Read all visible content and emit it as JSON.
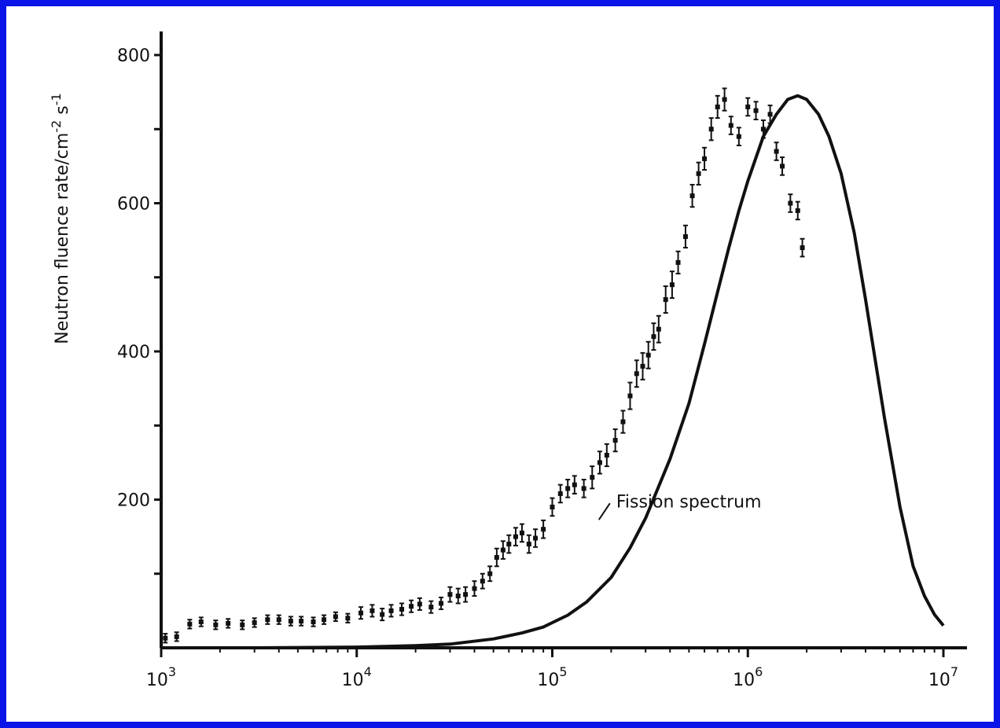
{
  "chart_data": {
    "type": "scatter",
    "title": "",
    "xlabel": "",
    "ylabel": "Neutron fluence rate/cm",
    "ylabel_sup1": "-2",
    "ylabel_mid": " s",
    "ylabel_sup2": "-1",
    "x_scale": "log",
    "xlim": [
      1000,
      10000000
    ],
    "ylim": [
      0,
      800
    ],
    "grid": false,
    "legend": "none",
    "x_ticks": [
      {
        "value": 1000,
        "base": "10",
        "exp": "3"
      },
      {
        "value": 10000,
        "base": "10",
        "exp": "4"
      },
      {
        "value": 100000,
        "base": "10",
        "exp": "5"
      },
      {
        "value": 1000000,
        "base": "10",
        "exp": "6"
      },
      {
        "value": 10000000,
        "base": "10",
        "exp": "7"
      }
    ],
    "y_ticks": [
      {
        "value": 100,
        "label": ""
      },
      {
        "value": 200,
        "label": "200"
      },
      {
        "value": 300,
        "label": ""
      },
      {
        "value": 400,
        "label": "400"
      },
      {
        "value": 500,
        "label": ""
      },
      {
        "value": 600,
        "label": "600"
      },
      {
        "value": 700,
        "label": ""
      },
      {
        "value": 800,
        "label": "800"
      }
    ],
    "annotation": "Fission spectrum",
    "series": [
      {
        "style": "errorbar-points",
        "x": [
          1050,
          1200,
          1400,
          1600,
          1900,
          2200,
          2600,
          3000,
          3500,
          4000,
          4600,
          5200,
          6000,
          6800,
          7800,
          9000,
          10500,
          12000,
          13500,
          15000,
          17000,
          19000,
          21000,
          24000,
          27000,
          30000,
          33000,
          36000,
          40000,
          44000,
          48000,
          52000,
          56000,
          60000,
          65000,
          70000,
          76000,
          82000,
          90000,
          100000,
          110000,
          120000,
          130000,
          145000,
          160000,
          175000,
          190000,
          210000,
          230000,
          250000,
          270000,
          290000,
          310000,
          330000,
          350000,
          380000,
          410000,
          440000,
          480000,
          520000,
          560000,
          600000,
          650000,
          700000,
          760000,
          820000,
          900000,
          1000000,
          1100000,
          1200000,
          1300000,
          1400000,
          1500000,
          1650000,
          1800000,
          1900000
        ],
        "y": [
          13,
          15,
          32,
          35,
          31,
          33,
          31,
          34,
          38,
          38,
          36,
          36,
          35,
          38,
          42,
          40,
          47,
          50,
          45,
          50,
          52,
          56,
          59,
          55,
          60,
          72,
          70,
          72,
          80,
          90,
          100,
          122,
          132,
          140,
          150,
          155,
          140,
          148,
          160,
          190,
          208,
          215,
          220,
          215,
          230,
          250,
          260,
          280,
          305,
          340,
          370,
          380,
          395,
          420,
          430,
          470,
          490,
          520,
          555,
          610,
          640,
          660,
          700,
          730,
          740,
          705,
          690,
          730,
          725,
          700,
          720,
          670,
          650,
          600,
          590,
          540
        ],
        "err": [
          6,
          6,
          6,
          6,
          6,
          6,
          6,
          6,
          6,
          6,
          6,
          6,
          6,
          6,
          6,
          6,
          8,
          8,
          8,
          8,
          8,
          8,
          8,
          8,
          8,
          10,
          10,
          10,
          10,
          10,
          10,
          12,
          12,
          12,
          12,
          12,
          12,
          12,
          12,
          12,
          12,
          12,
          12,
          12,
          15,
          15,
          15,
          15,
          15,
          18,
          18,
          18,
          18,
          18,
          18,
          18,
          18,
          15,
          15,
          15,
          15,
          15,
          15,
          15,
          15,
          12,
          12,
          12,
          12,
          12,
          12,
          12,
          12,
          12,
          12,
          12
        ],
        "color": "#111111"
      },
      {
        "style": "line",
        "x": [
          1000,
          3000,
          10000,
          20000,
          30000,
          50000,
          70000,
          90000,
          100000,
          120000,
          150000,
          200000,
          250000,
          300000,
          400000,
          500000,
          600000,
          700000,
          800000,
          900000,
          1000000,
          1200000,
          1400000,
          1600000,
          1800000,
          2000000,
          2300000,
          2600000,
          3000000,
          3500000,
          4000000,
          5000000,
          6000000,
          7000000,
          8000000,
          9000000,
          10000000
        ],
        "y": [
          0,
          0,
          1,
          3,
          5,
          12,
          20,
          28,
          34,
          44,
          62,
          95,
          135,
          175,
          255,
          330,
          410,
          480,
          540,
          590,
          630,
          690,
          720,
          740,
          745,
          740,
          720,
          690,
          640,
          560,
          470,
          310,
          190,
          110,
          70,
          45,
          30
        ],
        "color": "#111111"
      }
    ]
  }
}
